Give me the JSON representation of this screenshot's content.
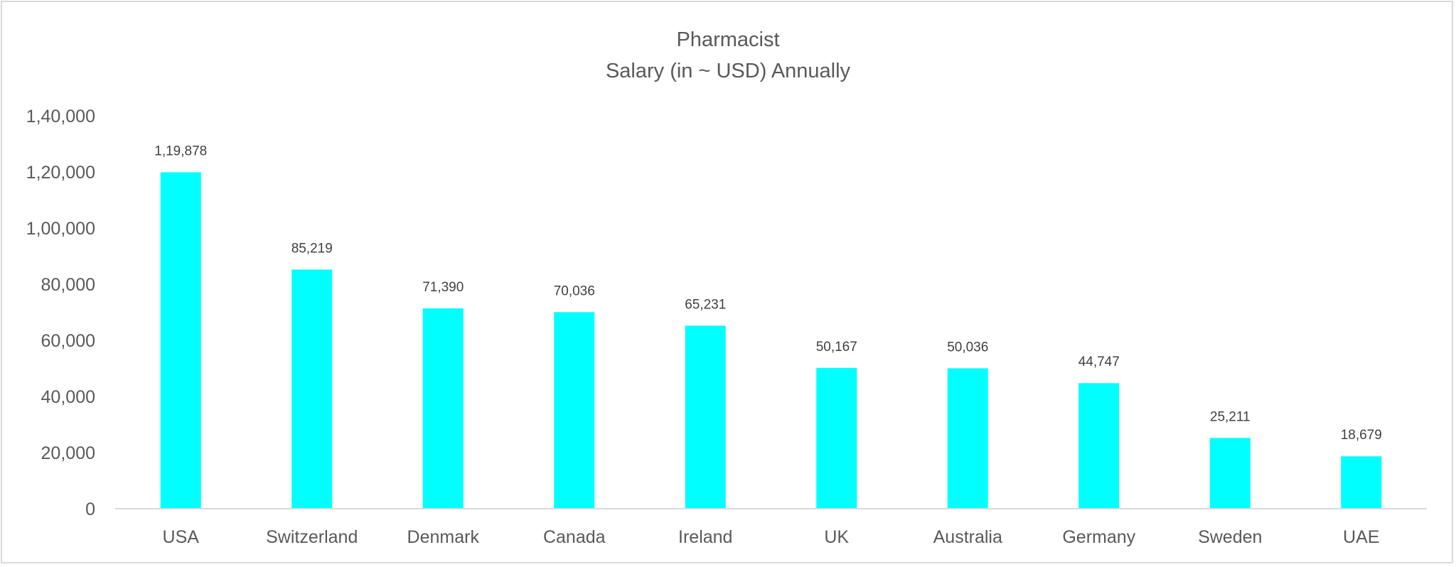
{
  "chart_data": {
    "type": "bar",
    "title": "Pharmacist",
    "subtitle": "Salary (in ~ USD) Annually",
    "xlabel": "",
    "ylabel": "",
    "categories": [
      "USA",
      "Switzerland",
      "Denmark",
      "Canada",
      "Ireland",
      "UK",
      "Australia",
      "Germany",
      "Sweden",
      "UAE"
    ],
    "values": [
      119878,
      85219,
      71390,
      70036,
      65231,
      50167,
      50036,
      44747,
      25211,
      18679
    ],
    "data_labels": [
      "1,19,878",
      "85,219",
      "71,390",
      "70,036",
      "65,231",
      "50,167",
      "50,036",
      "44,747",
      "25,211",
      "18,679"
    ],
    "ylim": [
      0,
      140000
    ],
    "y_ticks": [
      0,
      20000,
      40000,
      60000,
      80000,
      100000,
      120000,
      140000
    ],
    "y_tick_labels": [
      "0",
      "20,000",
      "40,000",
      "60,000",
      "80,000",
      "1,00,000",
      "1,20,000",
      "1,40,000"
    ],
    "grid": false,
    "legend": "none",
    "bar_color": "#00FFFF"
  }
}
